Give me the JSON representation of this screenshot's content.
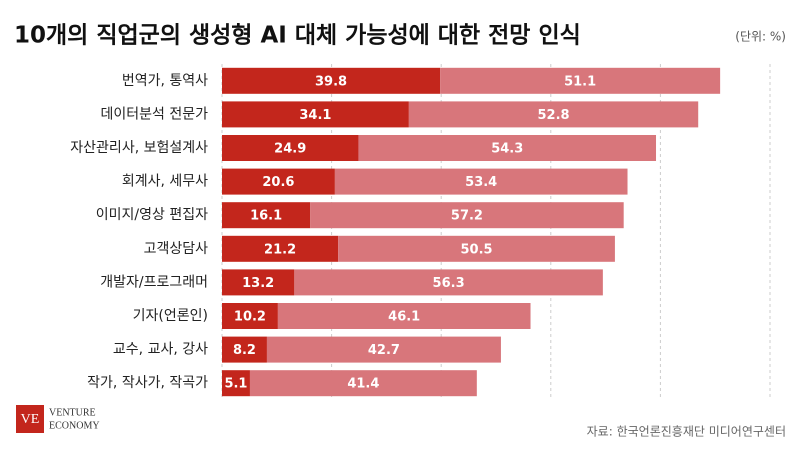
{
  "chart_data": {
    "type": "stacked-barh",
    "title": "10개의 직업군의 생성형 AI 대체 가능성에 대한 전망 인식",
    "subtitle": "(단위: %)",
    "source": "자료: 한국언론진흥재단 미디어연구센터",
    "logo": {
      "mark": "VE",
      "lines": [
        "VENTURE",
        "ECONOMY"
      ]
    },
    "categories": [
      "번역가, 통역사",
      "데이터분석 전문가",
      "자산관리사, 보험설계사",
      "회계사, 세무사",
      "이미지/영상 편집자",
      "고객상담사",
      "개발자/프로그래머",
      "기자(언론인)",
      "교수, 교사, 강사",
      "작가, 작사가, 작곡가"
    ],
    "series": [
      {
        "color": "#c3261c",
        "values": [
          39.8,
          34.1,
          24.9,
          20.6,
          16.1,
          21.2,
          13.2,
          10.2,
          8.2,
          5.1
        ]
      },
      {
        "color": "#d8767b",
        "values": [
          51.1,
          52.8,
          54.3,
          53.4,
          57.2,
          50.5,
          56.3,
          46.1,
          42.7,
          41.4
        ]
      }
    ],
    "xlim": [
      0,
      100
    ],
    "xticks": [
      0,
      20,
      40,
      60,
      80,
      100
    ],
    "grid": true
  }
}
